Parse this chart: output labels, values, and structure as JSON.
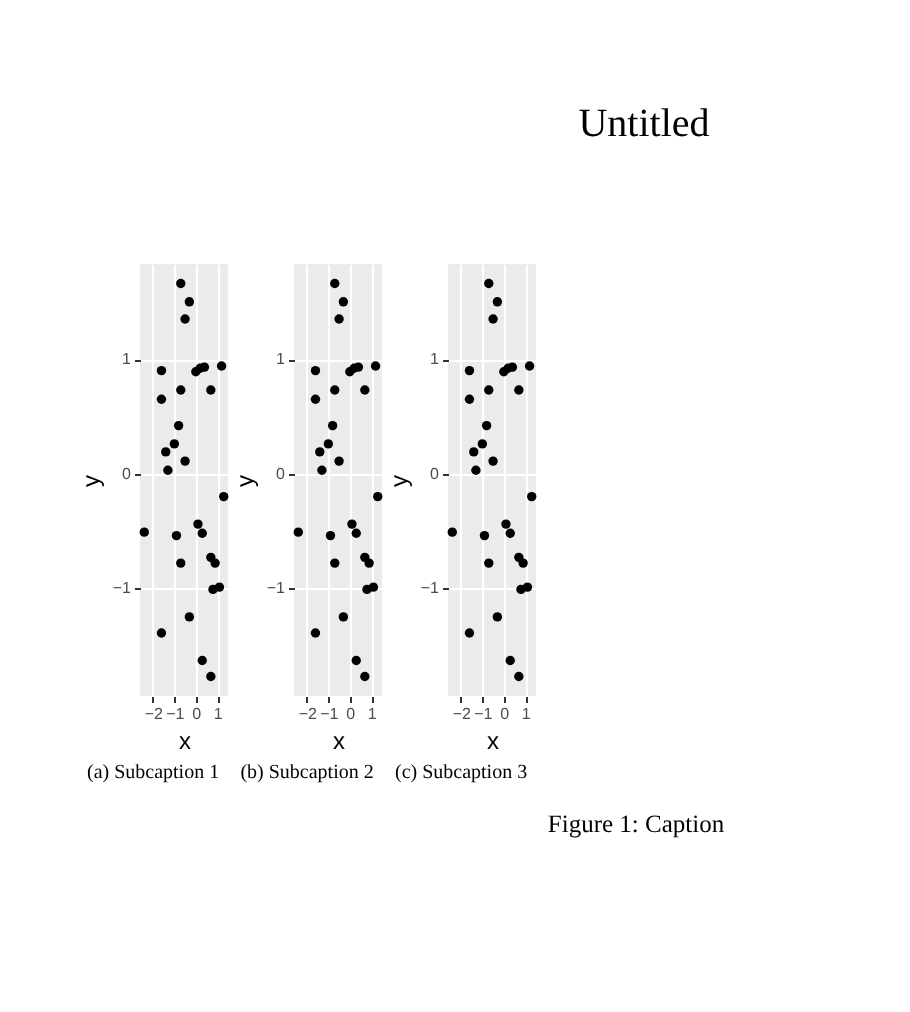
{
  "chart_data": [
    {
      "type": "scatter",
      "x": [
        -0.7,
        -0.3,
        -0.5,
        -1.6,
        -0.7,
        -1.6,
        0.0,
        0.2,
        0.4,
        1.2,
        0.7,
        -0.8,
        -1.0,
        -1.4,
        -1.3,
        -0.5,
        1.3,
        -2.4,
        -0.9,
        0.1,
        0.3,
        -0.7,
        0.7,
        0.9,
        0.8,
        1.1,
        -0.3,
        -1.6,
        0.3,
        0.7
      ],
      "values": [
        1.66,
        1.5,
        1.35,
        0.9,
        0.73,
        0.65,
        0.89,
        0.92,
        0.93,
        0.94,
        0.73,
        0.42,
        0.26,
        0.19,
        0.03,
        0.11,
        -0.2,
        -0.51,
        -0.54,
        -0.44,
        -0.52,
        -0.78,
        -0.73,
        -0.78,
        -1.01,
        -0.99,
        -1.25,
        -1.39,
        -1.63,
        -1.77
      ],
      "color": "#000000",
      "marker": "circle",
      "xlabel": "x",
      "ylabel": "y",
      "xlim": [
        -2.6,
        1.5
      ],
      "ylim": [
        -1.94,
        1.83
      ],
      "xticks": [
        -2,
        -1,
        0,
        1
      ],
      "yticks": [
        -1,
        0,
        1
      ],
      "grid": true,
      "annotations": [
        "(a) Subcaption 1"
      ]
    },
    {
      "type": "scatter",
      "x": [
        -0.7,
        -0.3,
        -0.5,
        -1.6,
        -0.7,
        -1.6,
        0.0,
        0.2,
        0.4,
        1.2,
        0.7,
        -0.8,
        -1.0,
        -1.4,
        -1.3,
        -0.5,
        1.3,
        -2.4,
        -0.9,
        0.1,
        0.3,
        -0.7,
        0.7,
        0.9,
        0.8,
        1.1,
        -0.3,
        -1.6,
        0.3,
        0.7
      ],
      "values": [
        1.66,
        1.5,
        1.35,
        0.9,
        0.73,
        0.65,
        0.89,
        0.92,
        0.93,
        0.94,
        0.73,
        0.42,
        0.26,
        0.19,
        0.03,
        0.11,
        -0.2,
        -0.51,
        -0.54,
        -0.44,
        -0.52,
        -0.78,
        -0.73,
        -0.78,
        -1.01,
        -0.99,
        -1.25,
        -1.39,
        -1.63,
        -1.77
      ],
      "color": "#000000",
      "marker": "circle",
      "xlabel": "x",
      "ylabel": "y",
      "xlim": [
        -2.6,
        1.5
      ],
      "ylim": [
        -1.94,
        1.83
      ],
      "xticks": [
        -2,
        -1,
        0,
        1
      ],
      "yticks": [
        -1,
        0,
        1
      ],
      "grid": true,
      "annotations": [
        "(b) Subcaption 2"
      ]
    },
    {
      "type": "scatter",
      "x": [
        -0.7,
        -0.3,
        -0.5,
        -1.6,
        -0.7,
        -1.6,
        0.0,
        0.2,
        0.4,
        1.2,
        0.7,
        -0.8,
        -1.0,
        -1.4,
        -1.3,
        -0.5,
        1.3,
        -2.4,
        -0.9,
        0.1,
        0.3,
        -0.7,
        0.7,
        0.9,
        0.8,
        1.1,
        -0.3,
        -1.6,
        0.3,
        0.7
      ],
      "values": [
        1.66,
        1.5,
        1.35,
        0.9,
        0.73,
        0.65,
        0.89,
        0.92,
        0.93,
        0.94,
        0.73,
        0.42,
        0.26,
        0.19,
        0.03,
        0.11,
        -0.2,
        -0.51,
        -0.54,
        -0.44,
        -0.52,
        -0.78,
        -0.73,
        -0.78,
        -1.01,
        -0.99,
        -1.25,
        -1.39,
        -1.63,
        -1.77
      ],
      "color": "#000000",
      "marker": "circle",
      "xlabel": "x",
      "ylabel": "y",
      "xlim": [
        -2.6,
        1.5
      ],
      "ylim": [
        -1.94,
        1.83
      ],
      "xticks": [
        -2,
        -1,
        0,
        1
      ],
      "yticks": [
        -1,
        0,
        1
      ],
      "grid": true,
      "annotations": [
        "(c) Subcaption 3"
      ]
    },
    {
      "type": "other",
      "title": "Untitled",
      "annotations": [
        "Figure 1: Caption"
      ]
    }
  ]
}
